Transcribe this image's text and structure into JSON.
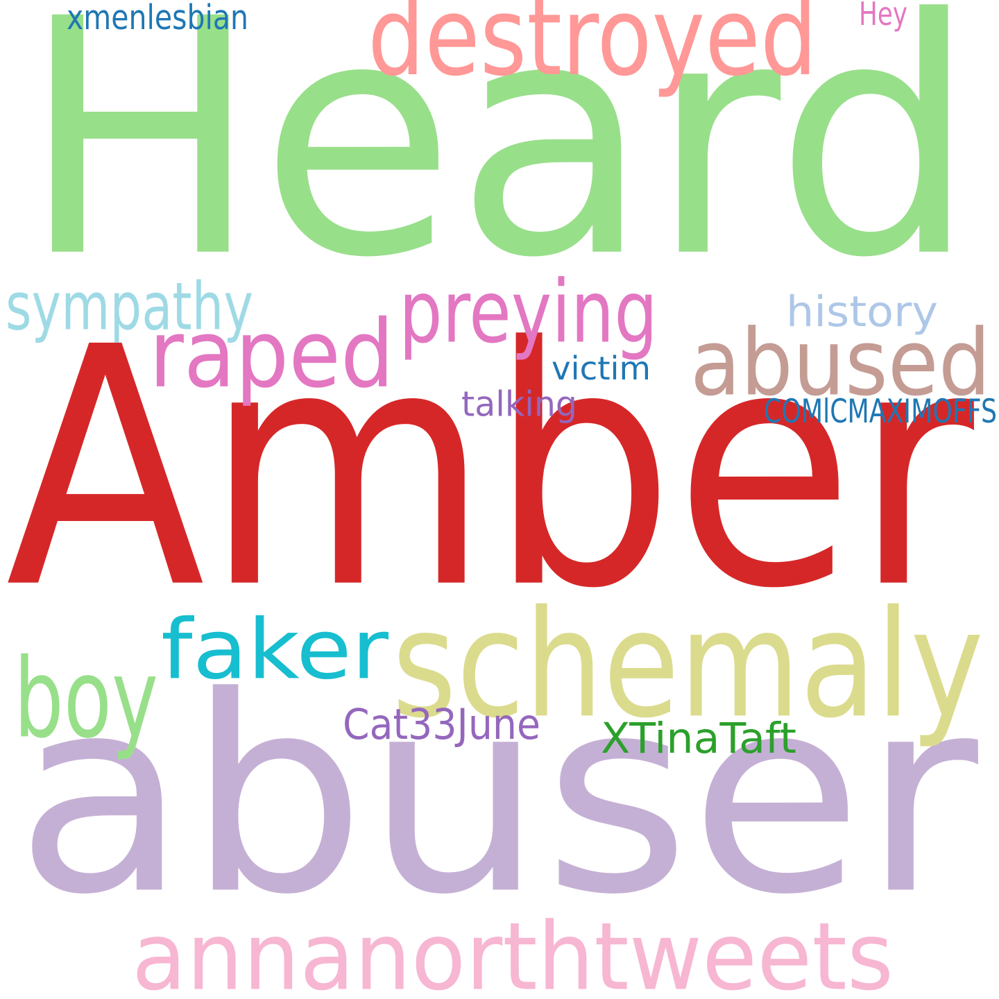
{
  "words": [
    {
      "id": "amber",
      "text": "Amber",
      "color": "#d62728"
    },
    {
      "id": "heard",
      "text": "Heard",
      "color": "#98df8a"
    },
    {
      "id": "abuser",
      "text": "abuser",
      "color": "#c5b0d5"
    },
    {
      "id": "schemaly",
      "text": "schemaly",
      "color": "#dbdb8d"
    },
    {
      "id": "destroyed",
      "text": "destroyed",
      "color": "#ff9896"
    },
    {
      "id": "annanorthtweets",
      "text": "annanorthtweets",
      "color": "#f7b6d2"
    },
    {
      "id": "abused",
      "text": "abused",
      "color": "#c49c94"
    },
    {
      "id": "raped",
      "text": "raped",
      "color": "#e377c2"
    },
    {
      "id": "faker",
      "text": "faker",
      "color": "#17becf"
    },
    {
      "id": "boy",
      "text": "boy",
      "color": "#98df8a"
    },
    {
      "id": "preying",
      "text": "preying",
      "color": "#e377c2"
    },
    {
      "id": "sympathy",
      "text": "sympathy",
      "color": "#9edae5"
    },
    {
      "id": "history",
      "text": "history",
      "color": "#aec7e8"
    },
    {
      "id": "xtinataft",
      "text": "XTinaTaft",
      "color": "#2ca02c"
    },
    {
      "id": "cat33june",
      "text": "Cat33June",
      "color": "#9467bd"
    },
    {
      "id": "comicmaximoffs",
      "text": "COMlCMAXIMOFFS",
      "color": "#1f77b4"
    },
    {
      "id": "victim",
      "text": "victim",
      "color": "#1f77b4"
    },
    {
      "id": "talking",
      "text": "talking",
      "color": "#9467bd"
    },
    {
      "id": "xmenlesbian",
      "text": "xmenlesbian",
      "color": "#1f77b4"
    },
    {
      "id": "hey",
      "text": "Hey",
      "color": "#e377c2"
    }
  ]
}
